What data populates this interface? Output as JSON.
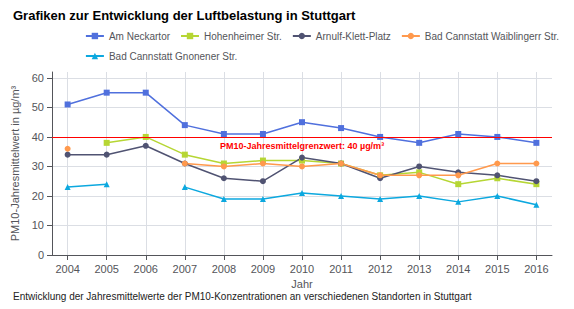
{
  "chart_data": {
    "type": "line",
    "title": "Grafiken zur Entwicklung der Luftbelastung in Stuttgart",
    "caption": "Entwicklung der Jahresmittelwerte der PM10-Konzentrationen an verschiedenen Standorten in Stuttgart",
    "xlabel": "Jahr",
    "ylabel": "PM10-Jahresmittelwert in µg/m³",
    "x": [
      2004,
      2005,
      2006,
      2007,
      2008,
      2009,
      2010,
      2011,
      2012,
      2013,
      2014,
      2015,
      2016
    ],
    "series": [
      {
        "name": "Am Neckartor",
        "marker": "square",
        "values": [
          51,
          55,
          55,
          44,
          41,
          41,
          45,
          43,
          40,
          38,
          41,
          40,
          38
        ]
      },
      {
        "name": "Hohenheimer Str.",
        "marker": "square",
        "values": [
          null,
          38,
          40,
          34,
          31,
          32,
          32,
          31,
          27,
          28,
          24,
          26,
          24
        ]
      },
      {
        "name": "Arnulf-Klett-Platz",
        "marker": "circle",
        "values": [
          34,
          34,
          37,
          31,
          26,
          25,
          33,
          31,
          26,
          30,
          28,
          27,
          25
        ]
      },
      {
        "name": "Bad Cannstatt Waiblingerr Str.",
        "marker": "circle",
        "values": [
          36,
          null,
          null,
          31,
          30,
          31,
          30,
          31,
          27,
          27,
          27,
          31,
          31
        ]
      },
      {
        "name": "Bad Cannstatt Gnonener Str.",
        "marker": "triangle",
        "values": [
          23,
          24,
          null,
          23,
          19,
          19,
          21,
          20,
          19,
          20,
          18,
          20,
          17
        ]
      }
    ],
    "annotations": [
      {
        "type": "hline",
        "y": 40,
        "text": "PM10-Jahresmittelgrenzwert: 40 µg/m³",
        "color": "#ff0000"
      }
    ],
    "xlim": [
      2003.6,
      2016.4
    ],
    "xticks": [
      2004,
      2005,
      2006,
      2007,
      2008,
      2009,
      2010,
      2011,
      2012,
      2013,
      2014,
      2015,
      2016
    ],
    "ylim": [
      0,
      62
    ],
    "yticks": [
      0,
      10,
      20,
      30,
      40,
      50,
      60
    ],
    "grid": true,
    "legend": "upper right"
  }
}
